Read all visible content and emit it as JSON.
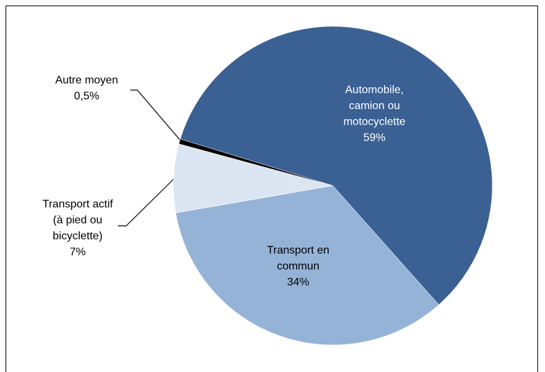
{
  "chart_data": {
    "type": "pie",
    "categories": [
      "Automobile, camion ou motocyclette",
      "Transport en commun",
      "Transport actif (à pied ou bicyclette)",
      "Autre moyen"
    ],
    "values": [
      59,
      34,
      7,
      0.5
    ],
    "value_labels": [
      "59%",
      "34%",
      "7%",
      "0,5%"
    ],
    "colors": [
      "#3a6094",
      "#95b3d7",
      "#dce6f2",
      "#000000"
    ]
  }
}
